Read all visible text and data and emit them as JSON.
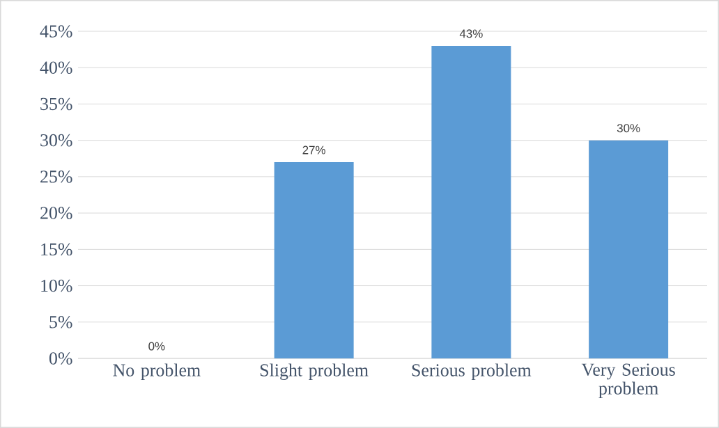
{
  "chart_data": {
    "type": "bar",
    "categories": [
      "No problem",
      "Slight problem",
      "Serious problem",
      "Very Serious problem"
    ],
    "values": [
      0,
      27,
      43,
      30
    ],
    "value_labels": [
      "0%",
      "27%",
      "43%",
      "30%"
    ],
    "color": "#5b9bd5",
    "ylim": [
      0,
      45
    ],
    "yticks": [
      {
        "value": 0,
        "label": "0%"
      },
      {
        "value": 5,
        "label": "5%"
      },
      {
        "value": 10,
        "label": "10%"
      },
      {
        "value": 15,
        "label": "15%"
      },
      {
        "value": 20,
        "label": "20%"
      },
      {
        "value": 25,
        "label": "25%"
      },
      {
        "value": 30,
        "label": "30%"
      },
      {
        "value": 35,
        "label": "35%"
      },
      {
        "value": 40,
        "label": "40%"
      },
      {
        "value": 45,
        "label": "45%"
      }
    ],
    "grid": "y"
  }
}
